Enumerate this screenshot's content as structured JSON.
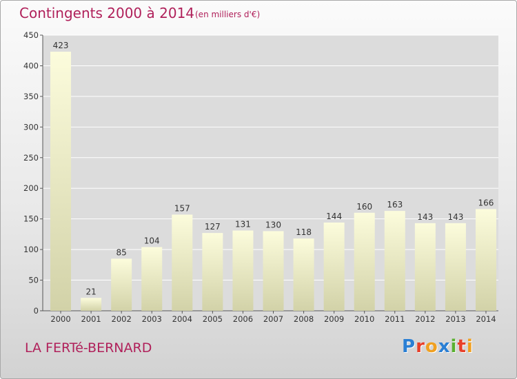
{
  "chart_data": {
    "type": "bar",
    "title": "Contingents 2000 à 2014",
    "subtitle": "(en milliers d'€)",
    "categories": [
      "2000",
      "2001",
      "2002",
      "2003",
      "2004",
      "2005",
      "2006",
      "2007",
      "2008",
      "2009",
      "2010",
      "2011",
      "2012",
      "2013",
      "2014"
    ],
    "values": [
      423,
      21,
      85,
      104,
      157,
      127,
      131,
      130,
      118,
      144,
      160,
      163,
      143,
      143,
      166
    ],
    "ylim": [
      0,
      450
    ],
    "yticks": [
      0,
      50,
      100,
      150,
      200,
      250,
      300,
      350,
      400,
      450
    ],
    "grid": true,
    "bar_color_top": "#fcfcdc",
    "bar_color_bottom": "#d2d2a8"
  },
  "footer": {
    "place_name": "LA FERTé-BERNARD",
    "brand": "Proxiti",
    "brand_colors": [
      "#2a7fd4",
      "#e8402a",
      "#f0a020",
      "#2a7fd4",
      "#5ab030",
      "#e8402a",
      "#f0a020"
    ]
  },
  "colors": {
    "accent": "#b0205a",
    "gridline": "#ffffff",
    "plot_background": "#dcdcdc"
  }
}
